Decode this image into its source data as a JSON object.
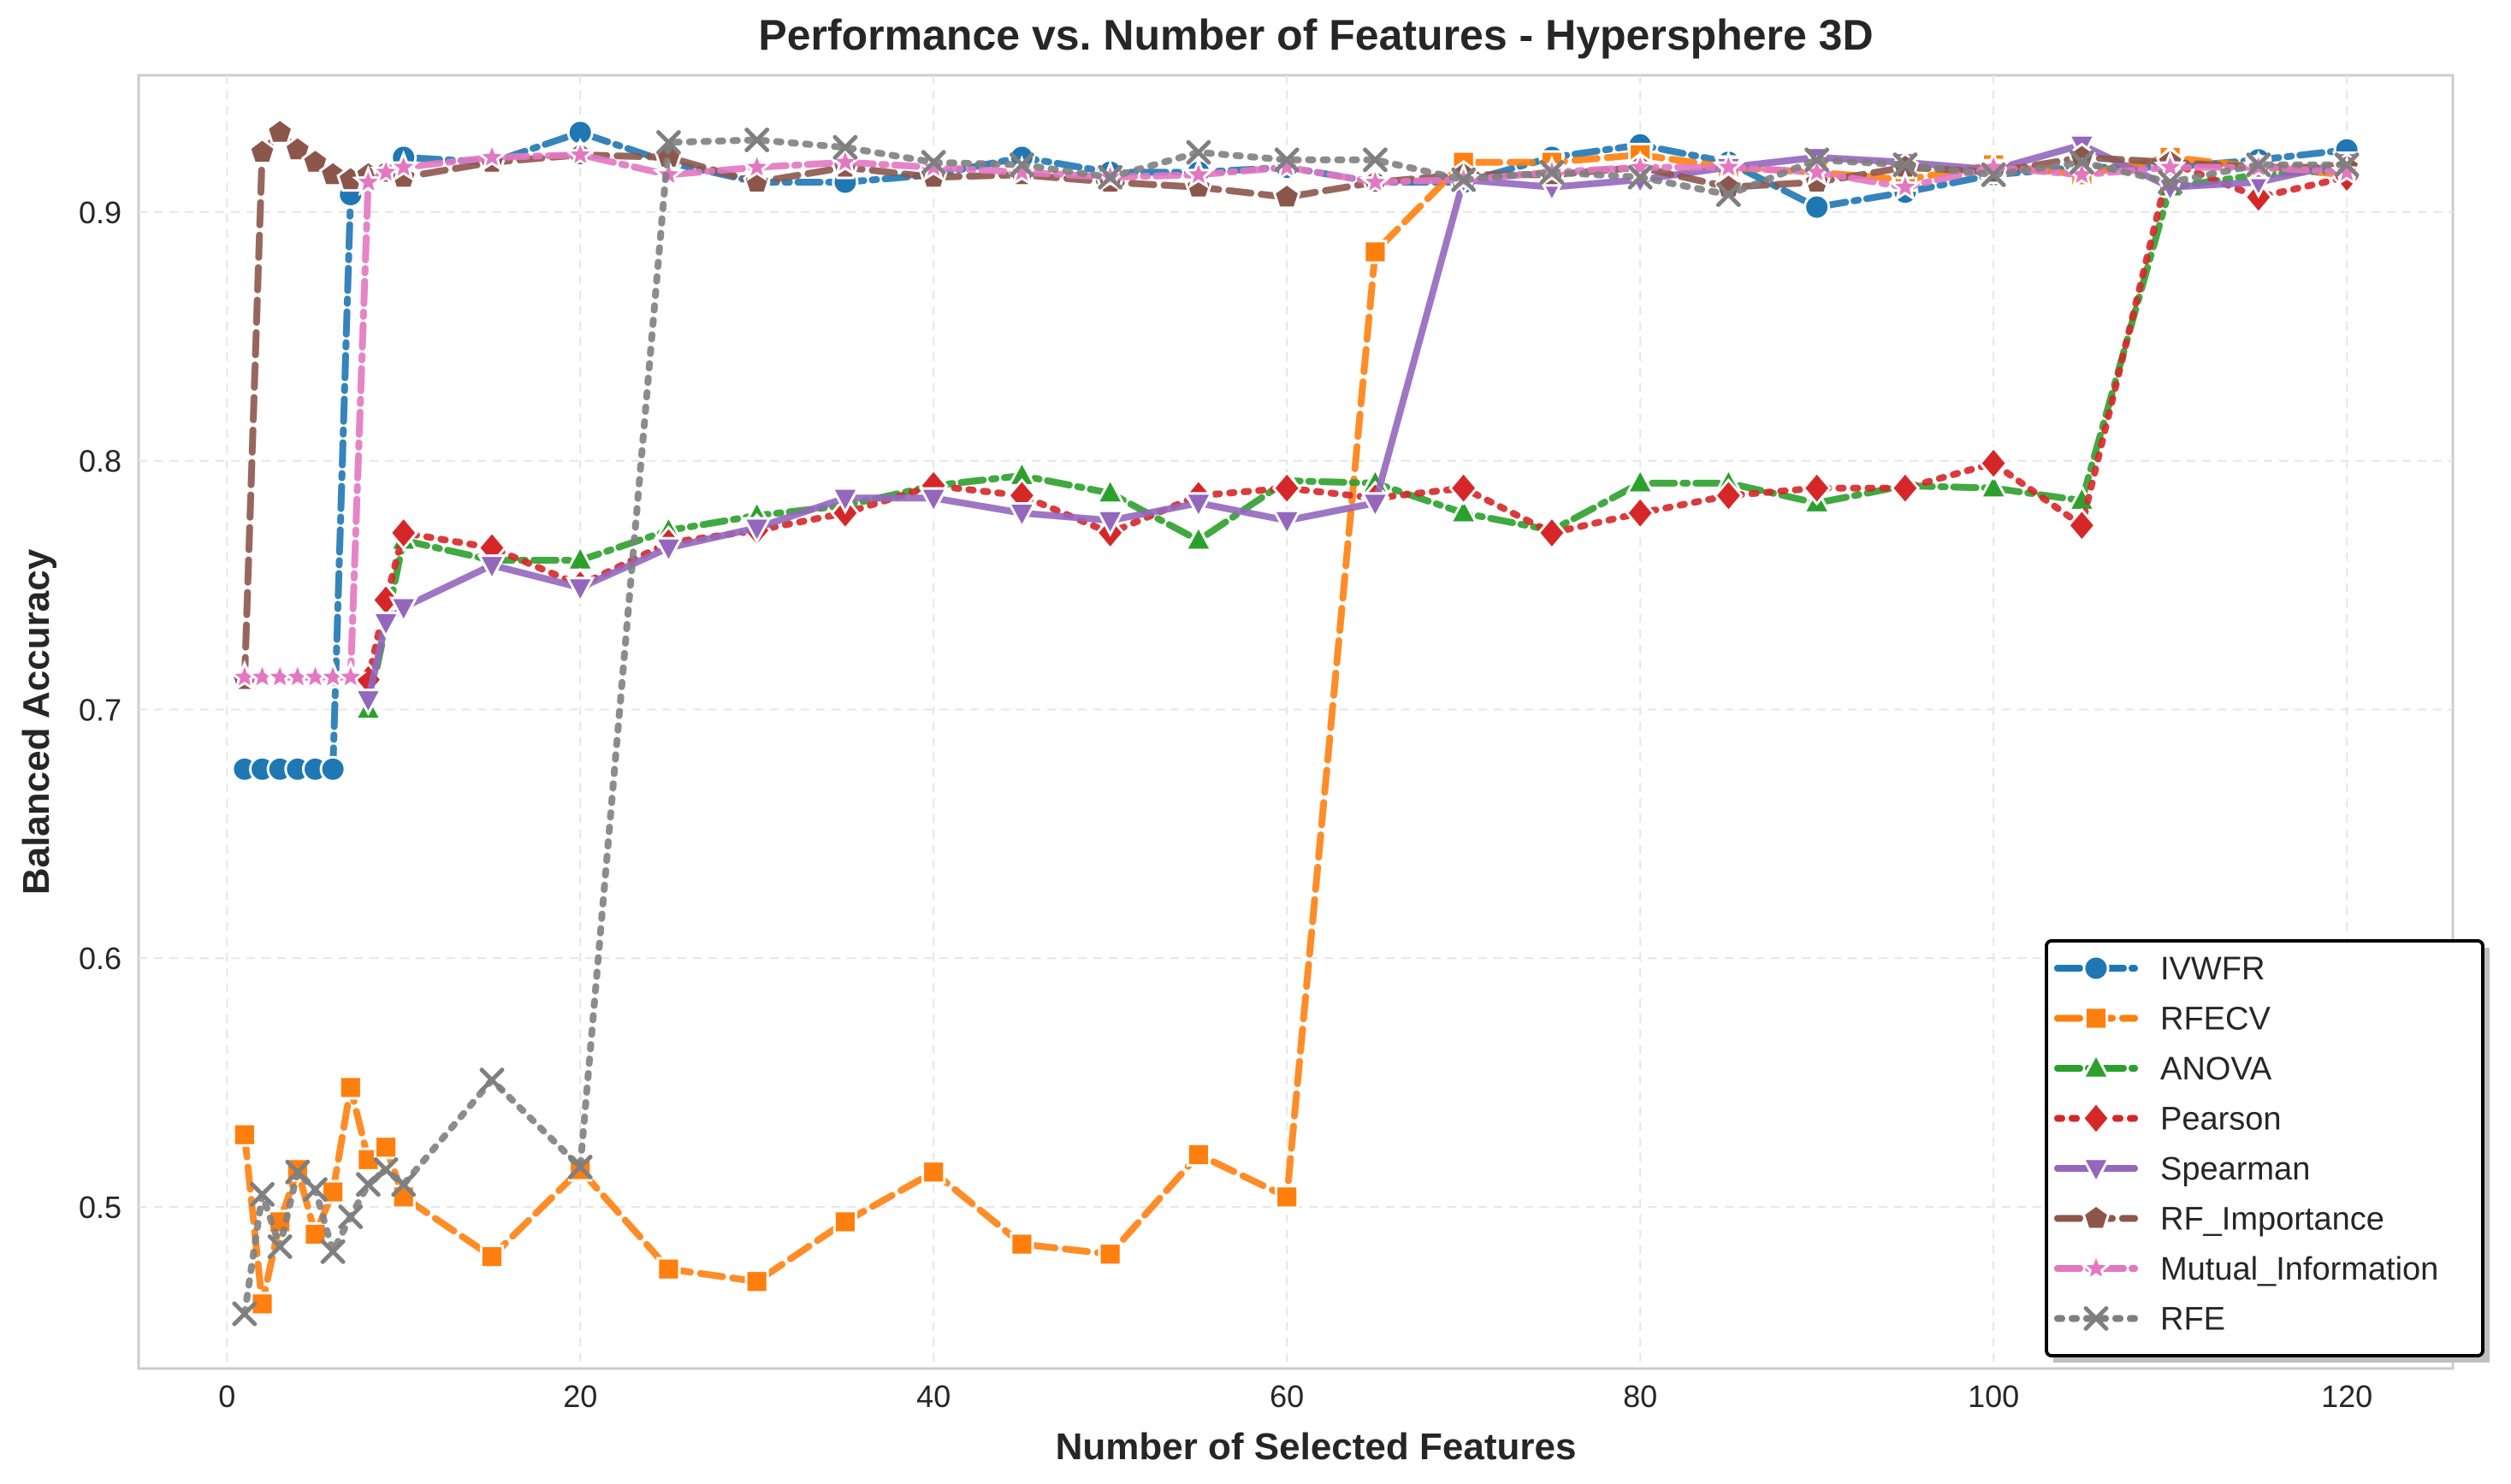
{
  "chart_data": {
    "type": "line",
    "title": "Performance vs. Number of Features - Hypersphere 3D",
    "xlabel": "Number of Selected Features",
    "ylabel": "Balanced Accuracy",
    "xlim": [
      -5,
      126
    ],
    "ylim": [
      0.435,
      0.955
    ],
    "xticks": [
      0,
      20,
      40,
      60,
      80,
      100,
      120
    ],
    "yticks": [
      0.5,
      0.6,
      0.7,
      0.8,
      0.9
    ],
    "ytick_labels": [
      "0.5",
      "0.6",
      "0.7",
      "0.8",
      "0.9"
    ],
    "grid": true,
    "legend_position": "lower-right",
    "series": [
      {
        "name": "IVWFR",
        "color": "#1f77b4",
        "marker": "circle",
        "dash": "dashdot",
        "x": [
          1,
          2,
          3,
          4,
          5,
          6,
          7,
          10,
          15,
          20,
          25,
          30,
          35,
          40,
          45,
          50,
          55,
          60,
          65,
          70,
          75,
          80,
          85,
          90,
          95,
          100,
          105,
          110,
          115,
          120
        ],
        "y": [
          0.676,
          0.676,
          0.676,
          0.676,
          0.676,
          0.676,
          0.907,
          0.922,
          0.92,
          0.932,
          0.92,
          0.912,
          0.912,
          0.915,
          0.922,
          0.916,
          0.916,
          0.918,
          0.912,
          0.912,
          0.922,
          0.927,
          0.92,
          0.902,
          0.908,
          0.915,
          0.918,
          0.918,
          0.921,
          0.925
        ]
      },
      {
        "name": "RFECV",
        "color": "#ff7f0e",
        "marker": "square",
        "dash": "dashed",
        "x": [
          1,
          2,
          3,
          4,
          5,
          6,
          7,
          8,
          9,
          10,
          15,
          20,
          25,
          30,
          35,
          40,
          45,
          50,
          55,
          60,
          65,
          70,
          75,
          80,
          85,
          90,
          95,
          100,
          105,
          110,
          115,
          120
        ],
        "y": [
          0.529,
          0.461,
          0.494,
          0.515,
          0.489,
          0.506,
          0.548,
          0.519,
          0.524,
          0.504,
          0.48,
          0.515,
          0.475,
          0.47,
          0.494,
          0.514,
          0.485,
          0.481,
          0.521,
          0.504,
          0.884,
          0.92,
          0.92,
          0.923,
          0.918,
          0.916,
          0.913,
          0.919,
          0.915,
          0.922,
          0.918,
          0.915
        ]
      },
      {
        "name": "ANOVA",
        "color": "#2ca02c",
        "marker": "triangle-up",
        "dash": "dashdot",
        "x": [
          8,
          10,
          15,
          20,
          25,
          30,
          35,
          40,
          45,
          50,
          55,
          60,
          65,
          70,
          75,
          80,
          85,
          90,
          95,
          100,
          105,
          110,
          115,
          120
        ],
        "y": [
          0.7,
          0.768,
          0.76,
          0.76,
          0.772,
          0.778,
          0.782,
          0.79,
          0.794,
          0.787,
          0.768,
          0.792,
          0.791,
          0.779,
          0.772,
          0.791,
          0.791,
          0.783,
          0.79,
          0.789,
          0.784,
          0.91,
          0.915,
          0.917
        ]
      },
      {
        "name": "Pearson",
        "color": "#d62728",
        "marker": "diamond",
        "dash": "dotted",
        "x": [
          8,
          9,
          10,
          15,
          20,
          25,
          30,
          35,
          40,
          45,
          50,
          55,
          60,
          65,
          70,
          75,
          80,
          85,
          90,
          95,
          100,
          105,
          110,
          115,
          120
        ],
        "y": [
          0.712,
          0.744,
          0.771,
          0.765,
          0.75,
          0.767,
          0.772,
          0.779,
          0.79,
          0.786,
          0.771,
          0.786,
          0.789,
          0.785,
          0.789,
          0.771,
          0.779,
          0.786,
          0.789,
          0.789,
          0.799,
          0.774,
          0.92,
          0.906,
          0.914
        ]
      },
      {
        "name": "Spearman",
        "color": "#9467bd",
        "marker": "triangle-down",
        "dash": "solid",
        "x": [
          8,
          9,
          10,
          15,
          20,
          25,
          30,
          35,
          40,
          45,
          50,
          55,
          60,
          65,
          70,
          75,
          80,
          85,
          90,
          95,
          100,
          105,
          110,
          115,
          120
        ],
        "y": [
          0.704,
          0.735,
          0.741,
          0.758,
          0.749,
          0.765,
          0.773,
          0.785,
          0.785,
          0.779,
          0.776,
          0.783,
          0.776,
          0.783,
          0.913,
          0.91,
          0.913,
          0.918,
          0.922,
          0.92,
          0.917,
          0.927,
          0.91,
          0.912,
          0.92
        ]
      },
      {
        "name": "RF_Importance",
        "color": "#8c564b",
        "marker": "pentagon",
        "dash": "dashed",
        "x": [
          1,
          2,
          3,
          4,
          5,
          6,
          7,
          8,
          9,
          10,
          15,
          20,
          25,
          30,
          35,
          40,
          45,
          50,
          55,
          60,
          65,
          70,
          75,
          80,
          85,
          90,
          95,
          100,
          105,
          110,
          115,
          120
        ],
        "y": [
          0.712,
          0.924,
          0.932,
          0.925,
          0.92,
          0.915,
          0.913,
          0.915,
          0.916,
          0.914,
          0.92,
          0.923,
          0.922,
          0.912,
          0.918,
          0.914,
          0.915,
          0.912,
          0.91,
          0.906,
          0.912,
          0.915,
          0.915,
          0.918,
          0.91,
          0.912,
          0.918,
          0.916,
          0.922,
          0.92,
          0.918,
          0.918
        ]
      },
      {
        "name": "Mutual_Information",
        "color": "#e377c2",
        "marker": "star",
        "dash": "dashdot",
        "x": [
          1,
          2,
          3,
          4,
          5,
          6,
          7,
          8,
          9,
          10,
          15,
          20,
          25,
          30,
          35,
          40,
          45,
          50,
          55,
          60,
          65,
          70,
          75,
          80,
          85,
          90,
          95,
          100,
          105,
          110,
          115,
          120
        ],
        "y": [
          0.713,
          0.713,
          0.713,
          0.713,
          0.713,
          0.713,
          0.713,
          0.912,
          0.916,
          0.918,
          0.922,
          0.923,
          0.915,
          0.918,
          0.92,
          0.918,
          0.916,
          0.914,
          0.915,
          0.918,
          0.912,
          0.913,
          0.916,
          0.918,
          0.918,
          0.916,
          0.91,
          0.918,
          0.915,
          0.918,
          0.918,
          0.916
        ]
      },
      {
        "name": "RFE",
        "color": "#7f7f7f",
        "marker": "x",
        "dash": "dotted",
        "x": [
          1,
          2,
          3,
          4,
          5,
          6,
          7,
          8,
          9,
          10,
          15,
          20,
          25,
          30,
          35,
          40,
          45,
          50,
          55,
          60,
          65,
          70,
          75,
          80,
          85,
          90,
          95,
          100,
          105,
          110,
          115,
          120
        ],
        "y": [
          0.457,
          0.505,
          0.484,
          0.514,
          0.507,
          0.482,
          0.496,
          0.509,
          0.515,
          0.509,
          0.551,
          0.516,
          0.928,
          0.929,
          0.926,
          0.92,
          0.919,
          0.914,
          0.924,
          0.921,
          0.921,
          0.913,
          0.916,
          0.914,
          0.907,
          0.921,
          0.919,
          0.915,
          0.92,
          0.912,
          0.919,
          0.919
        ]
      }
    ]
  }
}
